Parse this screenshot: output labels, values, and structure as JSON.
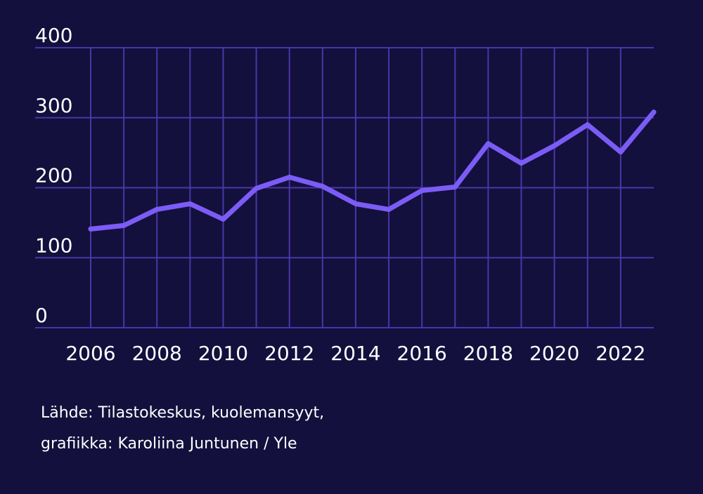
{
  "chart_data": {
    "type": "line",
    "x": [
      2006,
      2007,
      2008,
      2009,
      2010,
      2011,
      2012,
      2013,
      2014,
      2015,
      2016,
      2017,
      2018,
      2019,
      2020,
      2021,
      2022,
      2023
    ],
    "series": [
      {
        "values": [
          141,
          146,
          169,
          177,
          155,
          199,
          215,
          202,
          177,
          169,
          196,
          201,
          263,
          235,
          260,
          290,
          251,
          308
        ]
      }
    ],
    "xlim": [
      2006,
      2023
    ],
    "ylim": [
      0,
      400
    ],
    "x_ticks": [
      "2006",
      "2008",
      "2010",
      "2012",
      "2014",
      "2016",
      "2018",
      "2020",
      "2022"
    ],
    "y_ticks": [
      "0",
      "100",
      "200",
      "300",
      "400"
    ],
    "grid": true,
    "line_color": "#7c5cf6",
    "grid_color": "#4a36a8",
    "background_color": "#13103d",
    "title": "",
    "xlabel": "",
    "ylabel": ""
  },
  "source": {
    "line1": "Lähde: Tilastokeskus, kuolemansyyt,",
    "line2": "grafiikka: Karoliina Juntunen / Yle"
  }
}
